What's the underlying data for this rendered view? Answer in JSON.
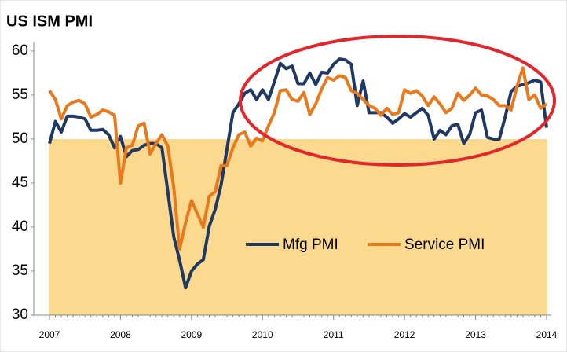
{
  "chart_data": {
    "type": "line",
    "title": "US ISM PMI",
    "categories": [
      "2007",
      null,
      null,
      null,
      null,
      null,
      null,
      null,
      null,
      null,
      null,
      null,
      "2008",
      null,
      null,
      null,
      null,
      null,
      null,
      null,
      null,
      null,
      null,
      null,
      "2009",
      null,
      null,
      null,
      null,
      null,
      null,
      null,
      null,
      null,
      null,
      null,
      "2010",
      null,
      null,
      null,
      null,
      null,
      null,
      null,
      null,
      null,
      null,
      null,
      "2011",
      null,
      null,
      null,
      null,
      null,
      null,
      null,
      null,
      null,
      null,
      null,
      "2012",
      null,
      null,
      null,
      null,
      null,
      null,
      null,
      null,
      null,
      null,
      null,
      "2013",
      null,
      null,
      null,
      null,
      null,
      null,
      null,
      null,
      null,
      null,
      null,
      "2014"
    ],
    "series": [
      {
        "name": "Mfg PMI",
        "color": "#1f3864",
        "values": [
          49.5,
          52,
          50.8,
          52.6,
          52.6,
          52.5,
          52.3,
          51,
          51,
          51.1,
          50.5,
          49,
          50.3,
          48,
          48.7,
          48.8,
          49.3,
          49.5,
          49.5,
          49,
          44,
          38.9,
          36.2,
          33.1,
          35,
          35.8,
          36.3,
          40.1,
          42,
          44.8,
          48.9,
          53,
          54,
          55.2,
          55.6,
          54.5,
          55.6,
          54.5,
          56.5,
          58.6,
          58,
          58.3,
          56.3,
          56.3,
          57.5,
          56.2,
          57.6,
          57.5,
          58.5,
          59.1,
          59,
          58.5,
          53.8,
          56.6,
          53,
          53,
          53,
          52.5,
          51.8,
          52.3,
          52.9,
          52.5,
          53,
          53.5,
          52.7,
          50,
          51,
          50.5,
          51.5,
          51.7,
          49.5,
          50.5,
          53,
          53.3,
          50.2,
          50,
          50,
          52.5,
          55.4,
          56,
          56.2,
          56.4,
          56.7,
          56.5,
          51.3
        ]
      },
      {
        "name": "Service PMI",
        "color": "#e8791d",
        "values": [
          55.5,
          54.5,
          52.3,
          53.8,
          54.2,
          54.4,
          54,
          52.5,
          52.8,
          53.3,
          53.1,
          52.7,
          45,
          49,
          49.3,
          51.5,
          51.8,
          48.3,
          49.5,
          50.5,
          49.2,
          44.5,
          37.5,
          40.5,
          43,
          41.5,
          40,
          43.5,
          44,
          47,
          47,
          49,
          50.5,
          50.8,
          49.2,
          50.1,
          49.8,
          51.5,
          53,
          55.5,
          55.6,
          54.5,
          54.3,
          55.3,
          52.8,
          54,
          55.7,
          57,
          56.7,
          57.2,
          57,
          55.5,
          55.2,
          54.5,
          53.8,
          53.5,
          52.7,
          53.5,
          52.8,
          53,
          55.6,
          55.2,
          55.5,
          54.9,
          53.8,
          54.8,
          54,
          53,
          53.5,
          55.2,
          54.4,
          55,
          55.8,
          55,
          54.9,
          54.5,
          53.8,
          53.8,
          53.3,
          56,
          58.1,
          54.5,
          55,
          53.5,
          54
        ]
      }
    ],
    "ylim": [
      30,
      61
    ],
    "yticks": [
      30,
      35,
      40,
      45,
      50,
      55,
      60
    ],
    "shaded_range": [
      30,
      50
    ],
    "shade_color": "#fbd98f"
  }
}
